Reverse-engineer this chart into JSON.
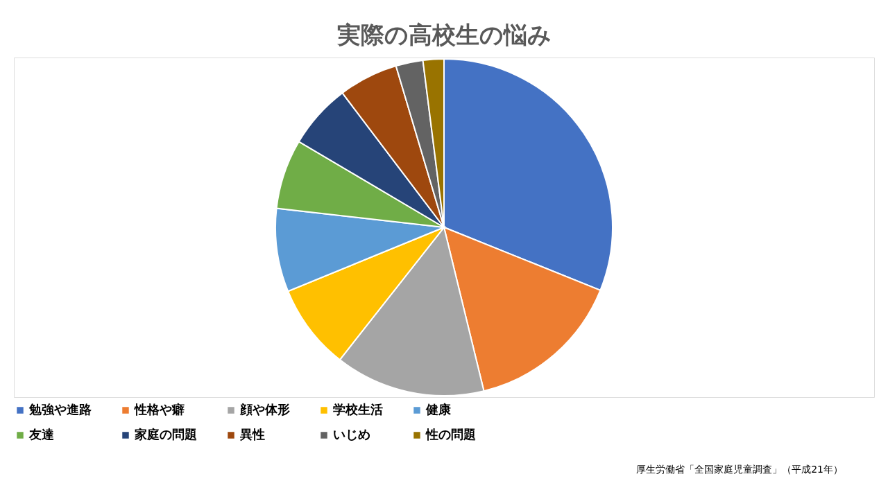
{
  "chart_data": {
    "type": "pie",
    "title": "実際の高校生の悩み",
    "categories": [
      "勉強や進路",
      "性格や癖",
      "顔や体形",
      "学校生活",
      "健康",
      "友達",
      "家庭の問題",
      "異性",
      "いじめ",
      "性の問題"
    ],
    "values": [
      31.1,
      15.1,
      14.4,
      8.2,
      8.0,
      6.7,
      6.2,
      5.7,
      2.6,
      2.0
    ],
    "colors": [
      "#4472c4",
      "#ed7d31",
      "#a5a5a5",
      "#ffc000",
      "#5b9bd5",
      "#70ad47",
      "#264478",
      "#9e480e",
      "#636363",
      "#997300"
    ],
    "legend": "bottom",
    "annotations": [
      "厚生労働省「全国家庭児童調査」（平成21年）"
    ]
  }
}
